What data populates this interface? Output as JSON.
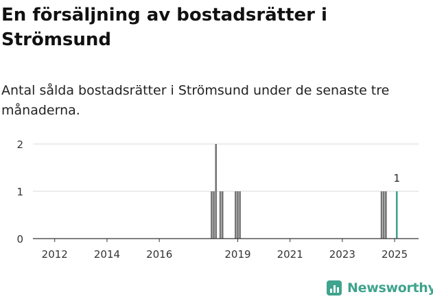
{
  "header": {
    "title": "En försäljning av bostadsrätter i Strömsund",
    "subtitle": "Antal sålda bostadsrätter i Strömsund under de senaste tre månaderna."
  },
  "brand": {
    "name": "Newsworthy",
    "color": "#3fa38d"
  },
  "chart_data": {
    "type": "bar",
    "x_axis": {
      "type": "time",
      "min": "2011-03",
      "max": "2025-12",
      "ticks": [
        "2012",
        "2014",
        "2016",
        "2019",
        "2021",
        "2023",
        "2025"
      ]
    },
    "y_axis": {
      "min": 0,
      "max": 2,
      "ticks": [
        0,
        1,
        2
      ]
    },
    "grid": true,
    "series": [
      {
        "values": [
          {
            "x": "2018-01",
            "y": 1
          },
          {
            "x": "2018-02",
            "y": 1
          },
          {
            "x": "2018-03",
            "y": 2
          },
          {
            "x": "2018-05",
            "y": 1
          },
          {
            "x": "2018-06",
            "y": 1
          },
          {
            "x": "2018-12",
            "y": 1
          },
          {
            "x": "2019-01",
            "y": 1
          },
          {
            "x": "2019-02",
            "y": 1
          },
          {
            "x": "2024-07",
            "y": 1
          },
          {
            "x": "2024-08",
            "y": 1
          },
          {
            "x": "2024-09",
            "y": 1
          },
          {
            "x": "2025-02",
            "y": 1,
            "highlight": true,
            "label": "1"
          }
        ]
      }
    ],
    "colors": {
      "bar": "#757575",
      "highlight": "#3fa38d",
      "grid": "#d9d9d9",
      "axis": "#333333"
    }
  }
}
